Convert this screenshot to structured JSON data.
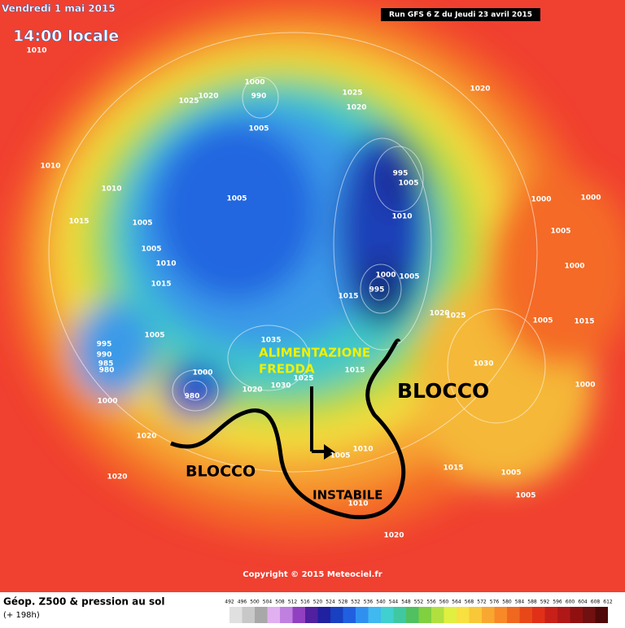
{
  "header": {
    "date": "Vendredi 1 mai 2015",
    "time": "14:00 locale",
    "run": "Run GFS 6 Z du Jeudi 23 avril 2015"
  },
  "annotations": {
    "feed_line1": "ALIMENTAZIONE",
    "feed_line2": "FREDDA",
    "block_west": "BLOCCO",
    "block_east": "BLOCCO",
    "unstable": "INSTABILE"
  },
  "pressure_labels": [
    "1010",
    "1025",
    "1020",
    "1000",
    "990",
    "1025",
    "1020",
    "1020",
    "1005",
    "1010",
    "1010",
    "1005",
    "995",
    "1005",
    "1000",
    "1000",
    "1015",
    "1005",
    "1010",
    "1005",
    "1005",
    "1010",
    "1000",
    "1005",
    "1000",
    "1015",
    "995",
    "1015",
    "1020",
    "1025",
    "1005",
    "1015",
    "995",
    "1005",
    "1035",
    "990",
    "985",
    "980",
    "1000",
    "1015",
    "1025",
    "1030",
    "1000",
    "1030",
    "1020",
    "980",
    "1000",
    "1020",
    "1005",
    "1010",
    "1015",
    "1005",
    "1005",
    "1020",
    "1010",
    "1020"
  ],
  "footer": {
    "title": "Géop. Z500 & pression au sol",
    "lead": "(+ 198h)",
    "copyright": "Copyright © 2015 Meteociel.fr"
  },
  "legend": {
    "ticks": [
      492,
      496,
      500,
      504,
      508,
      512,
      516,
      520,
      524,
      528,
      532,
      536,
      540,
      544,
      548,
      552,
      556,
      560,
      564,
      568,
      572,
      576,
      580,
      584,
      588,
      592,
      596,
      600,
      604,
      608,
      612
    ]
  }
}
